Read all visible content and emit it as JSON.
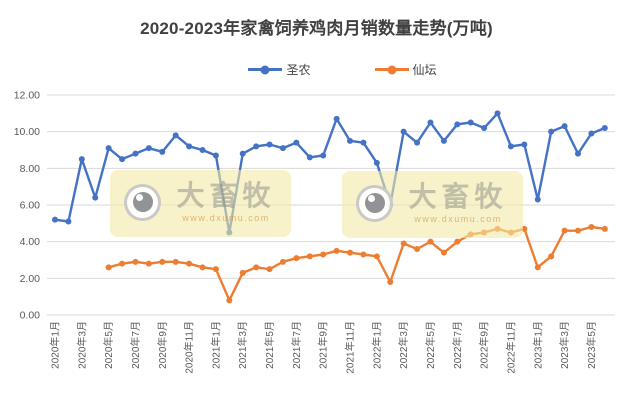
{
  "page": {
    "background": "#ffffff"
  },
  "chart_data": {
    "type": "line",
    "title": "2020-2023年家禽饲养鸡肉月销数量走势(万吨)",
    "legend_position": "top",
    "grid": "horizontal",
    "grid_color": "#d9d9d9",
    "axis_label_color": "#595959",
    "ylim": [
      0,
      12
    ],
    "y_tick_labels": [
      "0.00",
      "2.00",
      "4.00",
      "6.00",
      "8.00",
      "10.00",
      "12.00"
    ],
    "x_tick_every": 2,
    "categories": [
      "2020年1月",
      "2020年2月",
      "2020年3月",
      "2020年4月",
      "2020年5月",
      "2020年6月",
      "2020年7月",
      "2020年8月",
      "2020年9月",
      "2020年10月",
      "2020年11月",
      "2020年12月",
      "2021年1月",
      "2021年2月",
      "2021年3月",
      "2021年4月",
      "2021年5月",
      "2021年6月",
      "2021年7月",
      "2021年8月",
      "2021年9月",
      "2021年10月",
      "2021年11月",
      "2021年12月",
      "2022年1月",
      "2022年2月",
      "2022年3月",
      "2022年4月",
      "2022年5月",
      "2022年6月",
      "2022年7月",
      "2022年8月",
      "2022年9月",
      "2022年10月",
      "2022年11月",
      "2022年12月",
      "2023年1月",
      "2023年2月",
      "2023年3月",
      "2023年4月",
      "2023年5月",
      "2023年6月"
    ],
    "series": [
      {
        "name": "圣农",
        "color": "#4472C4",
        "values": [
          5.2,
          5.1,
          8.5,
          6.4,
          9.1,
          8.5,
          8.8,
          9.1,
          8.9,
          9.8,
          9.2,
          9.0,
          8.7,
          4.5,
          8.8,
          9.2,
          9.3,
          9.1,
          9.4,
          8.6,
          8.7,
          10.7,
          9.5,
          9.4,
          8.3,
          6.0,
          10.0,
          9.4,
          10.5,
          9.5,
          10.4,
          10.5,
          10.2,
          11.0,
          9.2,
          9.3,
          6.3,
          10.0,
          10.3,
          8.8,
          9.9,
          10.2
        ]
      },
      {
        "name": "仙坛",
        "color": "#ED7D31",
        "values": [
          null,
          null,
          null,
          null,
          2.6,
          2.8,
          2.9,
          2.8,
          2.9,
          2.9,
          2.8,
          2.6,
          2.5,
          0.8,
          2.3,
          2.6,
          2.5,
          2.9,
          3.1,
          3.2,
          3.3,
          3.5,
          3.4,
          3.3,
          3.2,
          1.8,
          3.9,
          3.6,
          4.0,
          3.4,
          4.0,
          4.4,
          4.5,
          4.7,
          4.5,
          4.7,
          2.6,
          3.2,
          4.6,
          4.6,
          4.8,
          4.7
        ]
      }
    ]
  },
  "watermark": {
    "brand": "大畜牧",
    "url": "www.dxumu.com"
  }
}
